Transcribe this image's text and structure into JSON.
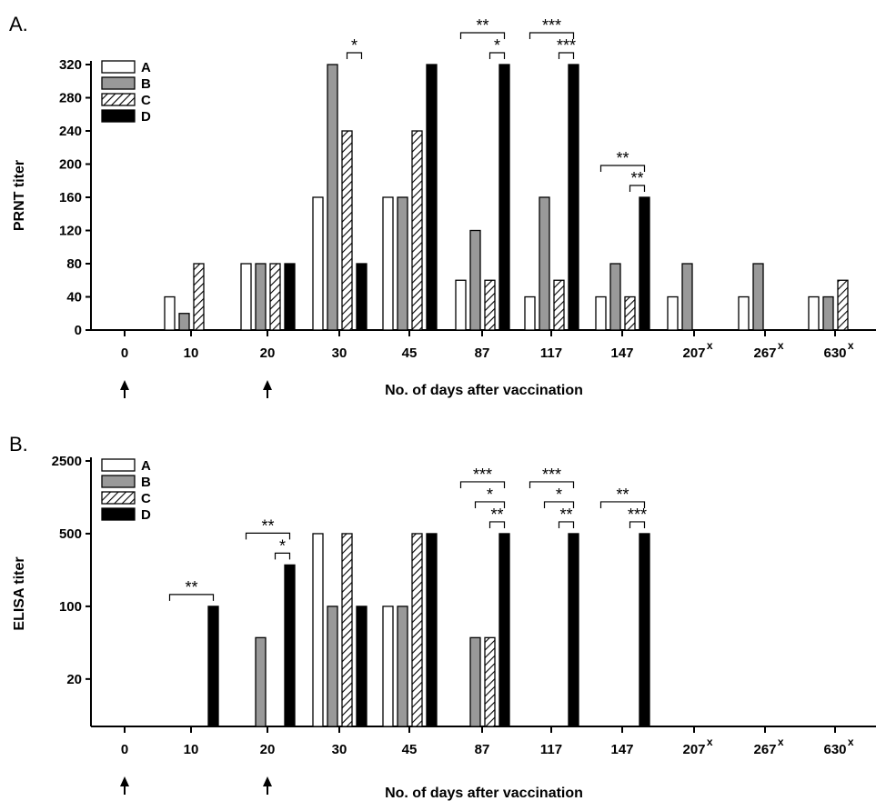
{
  "colors": {
    "A": "#ffffff",
    "B": "#999999",
    "C": "hatch",
    "D": "#000000",
    "axis": "#000000"
  },
  "chart_data": [
    {
      "panel": "A.",
      "type": "bar",
      "title": "",
      "xlabel": "No. of days after vaccination",
      "ylabel": "PRNT titer",
      "scale": "linear",
      "ylim": [
        0,
        320
      ],
      "yticks": [
        "0",
        "40",
        "80",
        "120",
        "160",
        "200",
        "240",
        "280",
        "320"
      ],
      "categories": [
        "0",
        "10",
        "20",
        "30",
        "45",
        "87",
        "117",
        "147",
        "207",
        "267",
        "630"
      ],
      "category_superscripts": [
        "",
        "",
        "",
        "",
        "",
        "",
        "",
        "",
        "x",
        "x",
        "x"
      ],
      "arrows_at": [
        "0",
        "20"
      ],
      "legend": {
        "position": "top-left",
        "entries": [
          "A",
          "B",
          "C",
          "D"
        ]
      },
      "series": [
        {
          "name": "A",
          "values": [
            0,
            40,
            80,
            160,
            160,
            60,
            40,
            40,
            40,
            40,
            40
          ]
        },
        {
          "name": "B",
          "values": [
            0,
            20,
            80,
            320,
            160,
            120,
            160,
            80,
            80,
            80,
            40
          ]
        },
        {
          "name": "C",
          "values": [
            0,
            80,
            80,
            240,
            240,
            60,
            60,
            40,
            0,
            0,
            60
          ]
        },
        {
          "name": "D",
          "values": [
            0,
            0,
            80,
            80,
            320,
            320,
            320,
            160,
            0,
            0,
            0
          ]
        }
      ],
      "significance": [
        {
          "category": "30",
          "from": "C",
          "to": "D",
          "level": 0,
          "label": "*"
        },
        {
          "category": "87",
          "from": "A",
          "to": "D",
          "level": 1,
          "label": "**"
        },
        {
          "category": "87",
          "from": "C",
          "to": "D",
          "level": 0,
          "label": "*"
        },
        {
          "category": "117",
          "from": "A",
          "to": "D",
          "level": 1,
          "label": "***"
        },
        {
          "category": "117",
          "from": "C",
          "to": "D",
          "level": 0,
          "label": "***"
        },
        {
          "category": "147",
          "from": "A",
          "to": "D",
          "level": 1,
          "label": "**"
        },
        {
          "category": "147",
          "from": "C",
          "to": "D",
          "level": 0,
          "label": "**"
        }
      ]
    },
    {
      "panel": "B.",
      "type": "bar",
      "title": "",
      "xlabel": "No. of days after vaccination",
      "ylabel": "ELISA titer",
      "scale": "log",
      "ylim": [
        7,
        2500
      ],
      "yticks": [
        "20",
        "100",
        "500",
        "2500"
      ],
      "categories": [
        "0",
        "10",
        "20",
        "30",
        "45",
        "87",
        "117",
        "147",
        "207",
        "267",
        "630"
      ],
      "category_superscripts": [
        "",
        "",
        "",
        "",
        "",
        "",
        "",
        "",
        "x",
        "x",
        "x"
      ],
      "arrows_at": [
        "0",
        "20"
      ],
      "legend": {
        "position": "top-left",
        "entries": [
          "A",
          "B",
          "C",
          "D"
        ]
      },
      "series": [
        {
          "name": "A",
          "values": [
            0,
            0,
            0,
            500,
            100,
            0,
            0,
            0,
            0,
            0,
            0
          ]
        },
        {
          "name": "B",
          "values": [
            0,
            0,
            50,
            100,
            100,
            50,
            0,
            0,
            0,
            0,
            0
          ]
        },
        {
          "name": "C",
          "values": [
            0,
            0,
            0,
            500,
            500,
            50,
            0,
            0,
            0,
            0,
            0
          ]
        },
        {
          "name": "D",
          "values": [
            0,
            100,
            250,
            100,
            500,
            500,
            500,
            500,
            0,
            0,
            0
          ]
        }
      ],
      "significance": [
        {
          "category": "10",
          "from": "A",
          "to": "D",
          "level": 0,
          "label": "**"
        },
        {
          "category": "20",
          "from": "A",
          "to": "D",
          "level": 1,
          "label": "**"
        },
        {
          "category": "20",
          "from": "C",
          "to": "D",
          "level": 0,
          "label": "*"
        },
        {
          "category": "87",
          "from": "A",
          "to": "D",
          "level": 2,
          "label": "***"
        },
        {
          "category": "87",
          "from": "B",
          "to": "D",
          "level": 1,
          "label": "*"
        },
        {
          "category": "87",
          "from": "C",
          "to": "D",
          "level": 0,
          "label": "**"
        },
        {
          "category": "117",
          "from": "A",
          "to": "D",
          "level": 2,
          "label": "***"
        },
        {
          "category": "117",
          "from": "B",
          "to": "D",
          "level": 1,
          "label": "*"
        },
        {
          "category": "117",
          "from": "C",
          "to": "D",
          "level": 0,
          "label": "**"
        },
        {
          "category": "147",
          "from": "A",
          "to": "D",
          "level": 1,
          "label": "**"
        },
        {
          "category": "147",
          "from": "C",
          "to": "D",
          "level": 0,
          "label": "***"
        }
      ]
    }
  ]
}
